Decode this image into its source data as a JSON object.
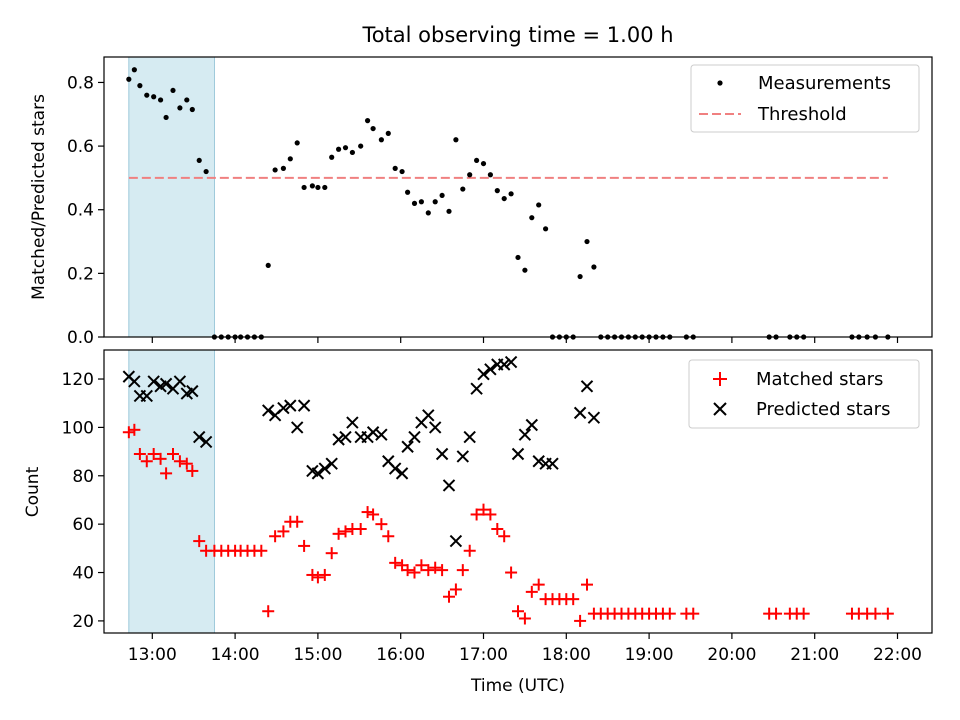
{
  "chart_data": [
    {
      "type": "scatter",
      "title": "Total observing time = 1.00 h",
      "ylabel": "Matched/Predicted stars",
      "xlabel": "",
      "ylim": [
        0,
        0.88
      ],
      "yticks": [
        "0.0",
        "0.2",
        "0.4",
        "0.6",
        "0.8"
      ],
      "legend_position": "top-right",
      "highlight_span": [
        "12:43",
        "13:45"
      ],
      "series": [
        {
          "name": "Measurements",
          "marker": "dot",
          "color": "#000000",
          "points": [
            [
              "12:43",
              0.81
            ],
            [
              "12:47",
              0.84
            ],
            [
              "12:51",
              0.79
            ],
            [
              "12:56",
              0.76
            ],
            [
              "13:01",
              0.755
            ],
            [
              "13:06",
              0.745
            ],
            [
              "13:10",
              0.69
            ],
            [
              "13:15",
              0.775
            ],
            [
              "13:20",
              0.72
            ],
            [
              "13:25",
              0.745
            ],
            [
              "13:29",
              0.715
            ],
            [
              "13:34",
              0.555
            ],
            [
              "13:39",
              0.52
            ],
            [
              "13:45",
              0.0
            ],
            [
              "13:50",
              0.0
            ],
            [
              "13:55",
              0.0
            ],
            [
              "14:00",
              0.0
            ],
            [
              "14:04",
              0.0
            ],
            [
              "14:09",
              0.0
            ],
            [
              "14:14",
              0.0
            ],
            [
              "14:19",
              0.0
            ],
            [
              "14:24",
              0.225
            ],
            [
              "14:29",
              0.525
            ],
            [
              "14:35",
              0.53
            ],
            [
              "14:40",
              0.56
            ],
            [
              "14:45",
              0.61
            ],
            [
              "14:50",
              0.47
            ],
            [
              "14:56",
              0.475
            ],
            [
              "15:00",
              0.47
            ],
            [
              "15:05",
              0.47
            ],
            [
              "15:10",
              0.565
            ],
            [
              "15:15",
              0.59
            ],
            [
              "15:20",
              0.595
            ],
            [
              "15:25",
              0.58
            ],
            [
              "15:31",
              0.6
            ],
            [
              "15:36",
              0.68
            ],
            [
              "15:40",
              0.655
            ],
            [
              "15:46",
              0.62
            ],
            [
              "15:51",
              0.64
            ],
            [
              "15:56",
              0.53
            ],
            [
              "16:01",
              0.52
            ],
            [
              "16:05",
              0.455
            ],
            [
              "16:10",
              0.42
            ],
            [
              "16:15",
              0.425
            ],
            [
              "16:20",
              0.39
            ],
            [
              "16:25",
              0.425
            ],
            [
              "16:30",
              0.445
            ],
            [
              "16:35",
              0.395
            ],
            [
              "16:40",
              0.62
            ],
            [
              "16:45",
              0.465
            ],
            [
              "16:50",
              0.51
            ],
            [
              "16:55",
              0.555
            ],
            [
              "17:00",
              0.545
            ],
            [
              "17:05",
              0.51
            ],
            [
              "17:10",
              0.46
            ],
            [
              "17:15",
              0.435
            ],
            [
              "17:20",
              0.45
            ],
            [
              "17:25",
              0.25
            ],
            [
              "17:30",
              0.21
            ],
            [
              "17:35",
              0.375
            ],
            [
              "17:40",
              0.415
            ],
            [
              "17:45",
              0.34
            ],
            [
              "17:50",
              0.0
            ],
            [
              "17:55",
              0.0
            ],
            [
              "18:00",
              0.0
            ],
            [
              "18:05",
              0.0
            ],
            [
              "18:10",
              0.19
            ],
            [
              "18:15",
              0.3
            ],
            [
              "18:20",
              0.22
            ],
            [
              "18:25",
              0.0
            ],
            [
              "18:30",
              0.0
            ],
            [
              "18:35",
              0.0
            ],
            [
              "18:40",
              0.0
            ],
            [
              "18:45",
              0.0
            ],
            [
              "18:50",
              0.0
            ],
            [
              "18:55",
              0.0
            ],
            [
              "19:00",
              0.0
            ],
            [
              "19:05",
              0.0
            ],
            [
              "19:10",
              0.0
            ],
            [
              "19:15",
              0.0
            ],
            [
              "19:27",
              0.0
            ],
            [
              "19:32",
              0.0
            ],
            [
              "20:27",
              0.0
            ],
            [
              "20:32",
              0.0
            ],
            [
              "20:42",
              0.0
            ],
            [
              "20:47",
              0.0
            ],
            [
              "20:52",
              0.0
            ],
            [
              "21:27",
              0.0
            ],
            [
              "21:32",
              0.0
            ],
            [
              "21:38",
              0.0
            ],
            [
              "21:44",
              0.0
            ],
            [
              "21:53",
              0.0
            ]
          ]
        },
        {
          "name": "Threshold",
          "marker": "dashed-line",
          "color": "#f08080",
          "y": 0.5,
          "x_range": [
            "12:43",
            "21:53"
          ]
        }
      ]
    },
    {
      "type": "scatter",
      "title": "",
      "ylabel": "Count",
      "xlabel": "Time (UTC)",
      "ylim": [
        15,
        132
      ],
      "yticks": [
        "20",
        "40",
        "60",
        "80",
        "100",
        "120"
      ],
      "xlim": [
        "12:25",
        "22:25"
      ],
      "xticks": [
        "13:00",
        "14:00",
        "15:00",
        "16:00",
        "17:00",
        "18:00",
        "19:00",
        "20:00",
        "21:00",
        "22:00"
      ],
      "legend_position": "top-right",
      "highlight_span": [
        "12:43",
        "13:45"
      ],
      "series": [
        {
          "name": "Matched stars",
          "marker": "plus",
          "color": "#ff0000",
          "points": [
            [
              "12:43",
              98
            ],
            [
              "12:47",
              99
            ],
            [
              "12:51",
              89
            ],
            [
              "12:56",
              86
            ],
            [
              "13:01",
              89
            ],
            [
              "13:06",
              87
            ],
            [
              "13:10",
              81
            ],
            [
              "13:15",
              89
            ],
            [
              "13:20",
              86
            ],
            [
              "13:25",
              85
            ],
            [
              "13:29",
              82
            ],
            [
              "13:34",
              53
            ],
            [
              "13:39",
              49
            ],
            [
              "13:45",
              49
            ],
            [
              "13:50",
              49
            ],
            [
              "13:55",
              49
            ],
            [
              "14:00",
              49
            ],
            [
              "14:04",
              49
            ],
            [
              "14:09",
              49
            ],
            [
              "14:14",
              49
            ],
            [
              "14:19",
              49
            ],
            [
              "14:24",
              24
            ],
            [
              "14:29",
              55
            ],
            [
              "14:35",
              57
            ],
            [
              "14:40",
              61
            ],
            [
              "14:45",
              61
            ],
            [
              "14:50",
              51
            ],
            [
              "14:56",
              39
            ],
            [
              "15:00",
              38
            ],
            [
              "15:05",
              39
            ],
            [
              "15:10",
              48
            ],
            [
              "15:15",
              56
            ],
            [
              "15:20",
              57
            ],
            [
              "15:25",
              58
            ],
            [
              "15:31",
              58
            ],
            [
              "15:36",
              65
            ],
            [
              "15:40",
              64
            ],
            [
              "15:46",
              60
            ],
            [
              "15:51",
              55
            ],
            [
              "15:56",
              44
            ],
            [
              "16:01",
              43
            ],
            [
              "16:05",
              41
            ],
            [
              "16:10",
              40
            ],
            [
              "16:15",
              43
            ],
            [
              "16:20",
              41
            ],
            [
              "16:25",
              42
            ],
            [
              "16:30",
              41
            ],
            [
              "16:35",
              30
            ],
            [
              "16:40",
              33
            ],
            [
              "16:45",
              41
            ],
            [
              "16:50",
              49
            ],
            [
              "16:55",
              64
            ],
            [
              "17:00",
              66
            ],
            [
              "17:05",
              64
            ],
            [
              "17:10",
              58
            ],
            [
              "17:15",
              55
            ],
            [
              "17:20",
              40
            ],
            [
              "17:25",
              24
            ],
            [
              "17:30",
              21
            ],
            [
              "17:35",
              32
            ],
            [
              "17:40",
              35
            ],
            [
              "17:45",
              29
            ],
            [
              "17:50",
              29
            ],
            [
              "17:55",
              29
            ],
            [
              "18:00",
              29
            ],
            [
              "18:05",
              29
            ],
            [
              "18:10",
              20
            ],
            [
              "18:15",
              35
            ],
            [
              "18:20",
              23
            ],
            [
              "18:25",
              23
            ],
            [
              "18:30",
              23
            ],
            [
              "18:35",
              23
            ],
            [
              "18:40",
              23
            ],
            [
              "18:45",
              23
            ],
            [
              "18:50",
              23
            ],
            [
              "18:55",
              23
            ],
            [
              "19:00",
              23
            ],
            [
              "19:05",
              23
            ],
            [
              "19:10",
              23
            ],
            [
              "19:15",
              23
            ],
            [
              "19:27",
              23
            ],
            [
              "19:32",
              23
            ],
            [
              "20:27",
              23
            ],
            [
              "20:32",
              23
            ],
            [
              "20:42",
              23
            ],
            [
              "20:47",
              23
            ],
            [
              "20:52",
              23
            ],
            [
              "21:27",
              23
            ],
            [
              "21:32",
              23
            ],
            [
              "21:38",
              23
            ],
            [
              "21:44",
              23
            ],
            [
              "21:53",
              23
            ]
          ]
        },
        {
          "name": "Predicted stars",
          "marker": "x",
          "color": "#000000",
          "points": [
            [
              "12:43",
              121
            ],
            [
              "12:47",
              119
            ],
            [
              "12:51",
              113
            ],
            [
              "12:56",
              113
            ],
            [
              "13:01",
              119
            ],
            [
              "13:06",
              117
            ],
            [
              "13:10",
              118
            ],
            [
              "13:15",
              116
            ],
            [
              "13:20",
              119
            ],
            [
              "13:25",
              114
            ],
            [
              "13:29",
              115
            ],
            [
              "13:34",
              96
            ],
            [
              "13:39",
              94
            ],
            [
              "14:24",
              107
            ],
            [
              "14:29",
              105
            ],
            [
              "14:35",
              108
            ],
            [
              "14:40",
              109
            ],
            [
              "14:45",
              100
            ],
            [
              "14:50",
              109
            ],
            [
              "14:56",
              82
            ],
            [
              "15:00",
              81
            ],
            [
              "15:05",
              83
            ],
            [
              "15:10",
              85
            ],
            [
              "15:15",
              95
            ],
            [
              "15:20",
              96
            ],
            [
              "15:25",
              102
            ],
            [
              "15:31",
              96
            ],
            [
              "15:36",
              96
            ],
            [
              "15:40",
              98
            ],
            [
              "15:46",
              97
            ],
            [
              "15:51",
              86
            ],
            [
              "15:56",
              83
            ],
            [
              "16:01",
              81
            ],
            [
              "16:05",
              92
            ],
            [
              "16:10",
              96
            ],
            [
              "16:15",
              102
            ],
            [
              "16:20",
              105
            ],
            [
              "16:25",
              100
            ],
            [
              "16:30",
              89
            ],
            [
              "16:35",
              76
            ],
            [
              "16:40",
              53
            ],
            [
              "16:45",
              88
            ],
            [
              "16:50",
              96
            ],
            [
              "16:55",
              116
            ],
            [
              "17:00",
              122
            ],
            [
              "17:05",
              124
            ],
            [
              "17:10",
              126
            ],
            [
              "17:15",
              126
            ],
            [
              "17:20",
              127
            ],
            [
              "17:25",
              89
            ],
            [
              "17:30",
              97
            ],
            [
              "17:35",
              101
            ],
            [
              "17:40",
              86
            ],
            [
              "17:45",
              85
            ],
            [
              "17:50",
              85
            ],
            [
              "18:10",
              106
            ],
            [
              "18:15",
              117
            ],
            [
              "18:20",
              104
            ]
          ]
        }
      ]
    }
  ]
}
